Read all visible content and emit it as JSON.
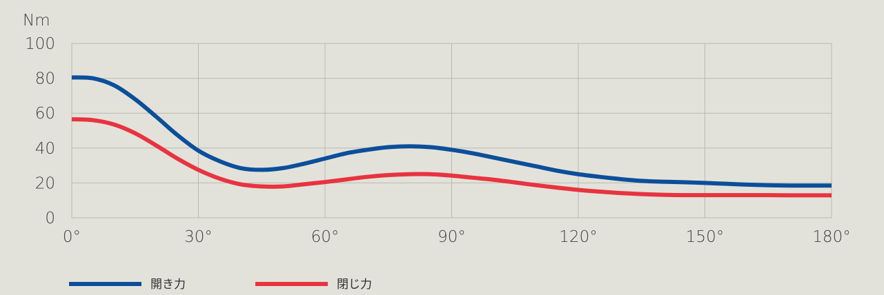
{
  "chart_data": {
    "type": "line",
    "ylabel": "Nm",
    "xlabel": "",
    "xlim": [
      0,
      180
    ],
    "ylim": [
      0,
      100
    ],
    "x_ticks": [
      0,
      30,
      60,
      90,
      120,
      150,
      180
    ],
    "x_tick_labels": [
      "0°",
      "30°",
      "60°",
      "90°",
      "120°",
      "150°",
      "180°"
    ],
    "y_ticks": [
      0,
      20,
      40,
      60,
      80,
      100
    ],
    "y_tick_labels": [
      "0",
      "20",
      "40",
      "60",
      "80",
      "100"
    ],
    "grid": true,
    "legend_position": "bottom-left",
    "series": [
      {
        "name": "開き力",
        "color": "#0b4f9a",
        "x": [
          0,
          5,
          10,
          15,
          20,
          25,
          30,
          35,
          40,
          45,
          50,
          55,
          60,
          65,
          70,
          75,
          80,
          85,
          90,
          95,
          100,
          105,
          110,
          115,
          120,
          125,
          130,
          135,
          140,
          145,
          150,
          155,
          160,
          165,
          170,
          175,
          180
        ],
        "y": [
          80.5,
          80,
          76,
          68,
          58,
          47.5,
          38.5,
          32.5,
          28.5,
          27.5,
          28.5,
          31,
          34,
          37,
          39,
          40.5,
          41,
          40.5,
          39,
          37,
          34.5,
          32,
          29.5,
          27,
          25,
          23.5,
          22.2,
          21.2,
          20.7,
          20.4,
          20,
          19.5,
          19,
          18.7,
          18.5,
          18.5,
          18.5
        ]
      },
      {
        "name": "閉じ力",
        "color": "#e83340",
        "x": [
          0,
          5,
          10,
          15,
          20,
          25,
          30,
          35,
          40,
          45,
          50,
          55,
          60,
          65,
          70,
          75,
          80,
          85,
          90,
          95,
          100,
          105,
          110,
          115,
          120,
          125,
          130,
          135,
          140,
          145,
          150,
          155,
          160,
          165,
          170,
          175,
          180
        ],
        "y": [
          56.5,
          56,
          53.5,
          48.5,
          41.5,
          34,
          27.5,
          22.5,
          19.2,
          18,
          18,
          19.2,
          20.5,
          22,
          23.5,
          24.5,
          25,
          25,
          24.2,
          23,
          21.8,
          20.3,
          18.7,
          17.3,
          16,
          15,
          14.2,
          13.6,
          13.2,
          13,
          13,
          13,
          13,
          13,
          12.9,
          12.9,
          12.9
        ]
      }
    ]
  }
}
